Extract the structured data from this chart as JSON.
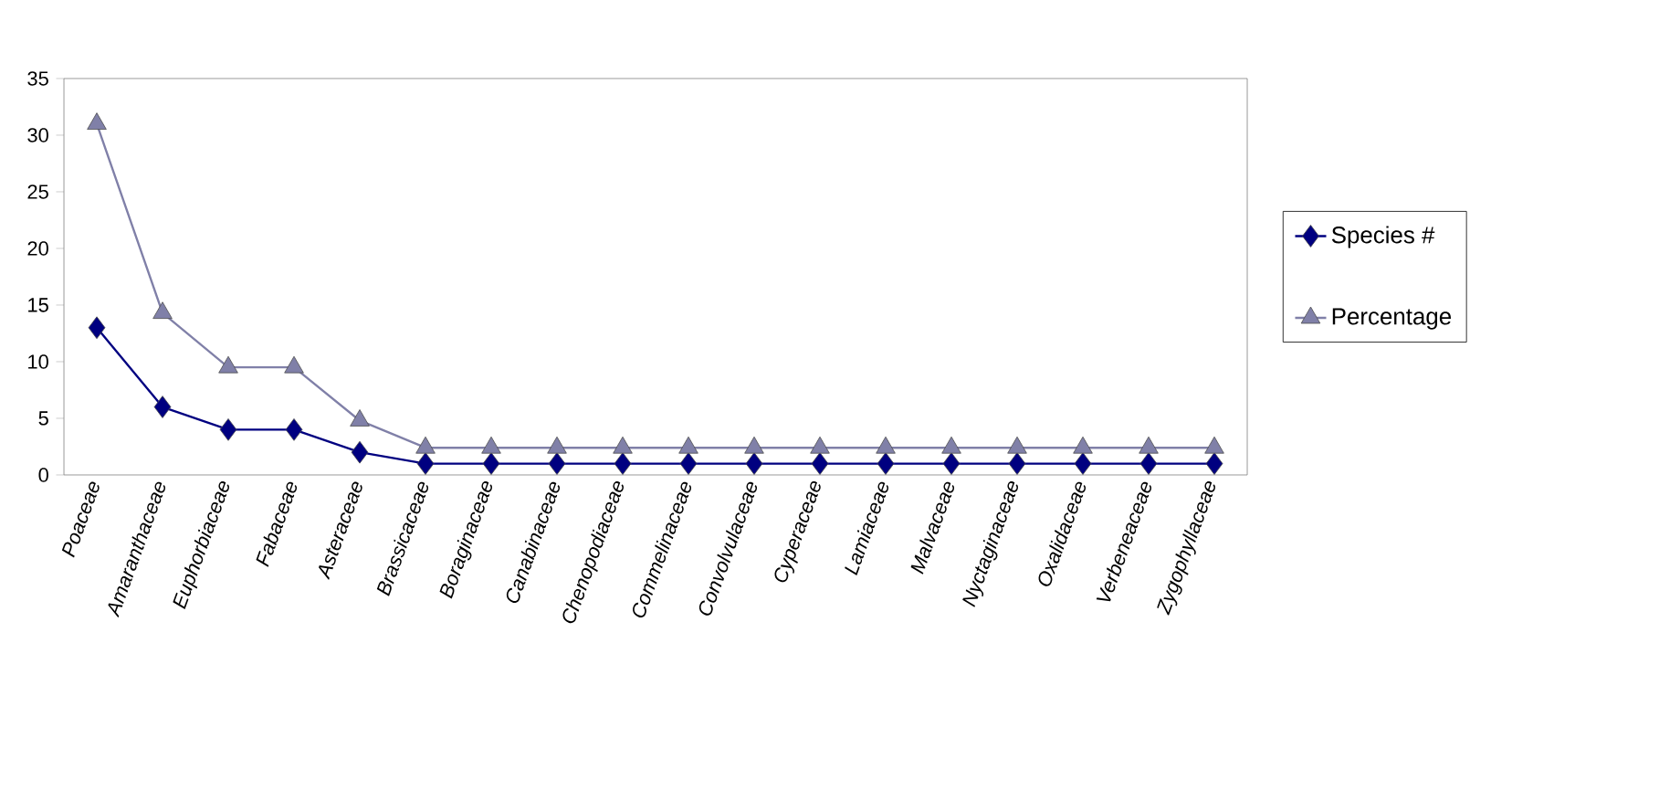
{
  "chart_data": {
    "type": "line",
    "categories": [
      "Poaceae",
      "Amaranthaceae",
      "Euphorbiaceae",
      "Fabaceae",
      "Asteraceae",
      "Brassicaceae",
      "Boraginaceae",
      "Canabinaceae",
      "Chenopodiaceae",
      "Commelinaceae",
      "Convolvulaceae",
      "Cyperaceae",
      "Lamiaceae",
      "Malvaceae",
      "Nyctaginaceae",
      "Oxalidaceae",
      "Verbeneaceae",
      "Zygophyllaceae"
    ],
    "series": [
      {
        "name": "Species #",
        "color": "#000080",
        "marker": "diamond",
        "values": [
          13,
          6,
          4,
          4,
          2,
          1,
          1,
          1,
          1,
          1,
          1,
          1,
          1,
          1,
          1,
          1,
          1,
          1
        ]
      },
      {
        "name": "Percentage",
        "color": "#8080a8",
        "marker": "triangle",
        "values": [
          31,
          14.3,
          9.5,
          9.5,
          4.8,
          2.4,
          2.4,
          2.4,
          2.4,
          2.4,
          2.4,
          2.4,
          2.4,
          2.4,
          2.4,
          2.4,
          2.4,
          2.4
        ]
      }
    ],
    "ylim": [
      0,
      35
    ],
    "yticks": [
      0,
      5,
      10,
      15,
      20,
      25,
      30,
      35
    ],
    "grid": false,
    "legend": "right"
  }
}
